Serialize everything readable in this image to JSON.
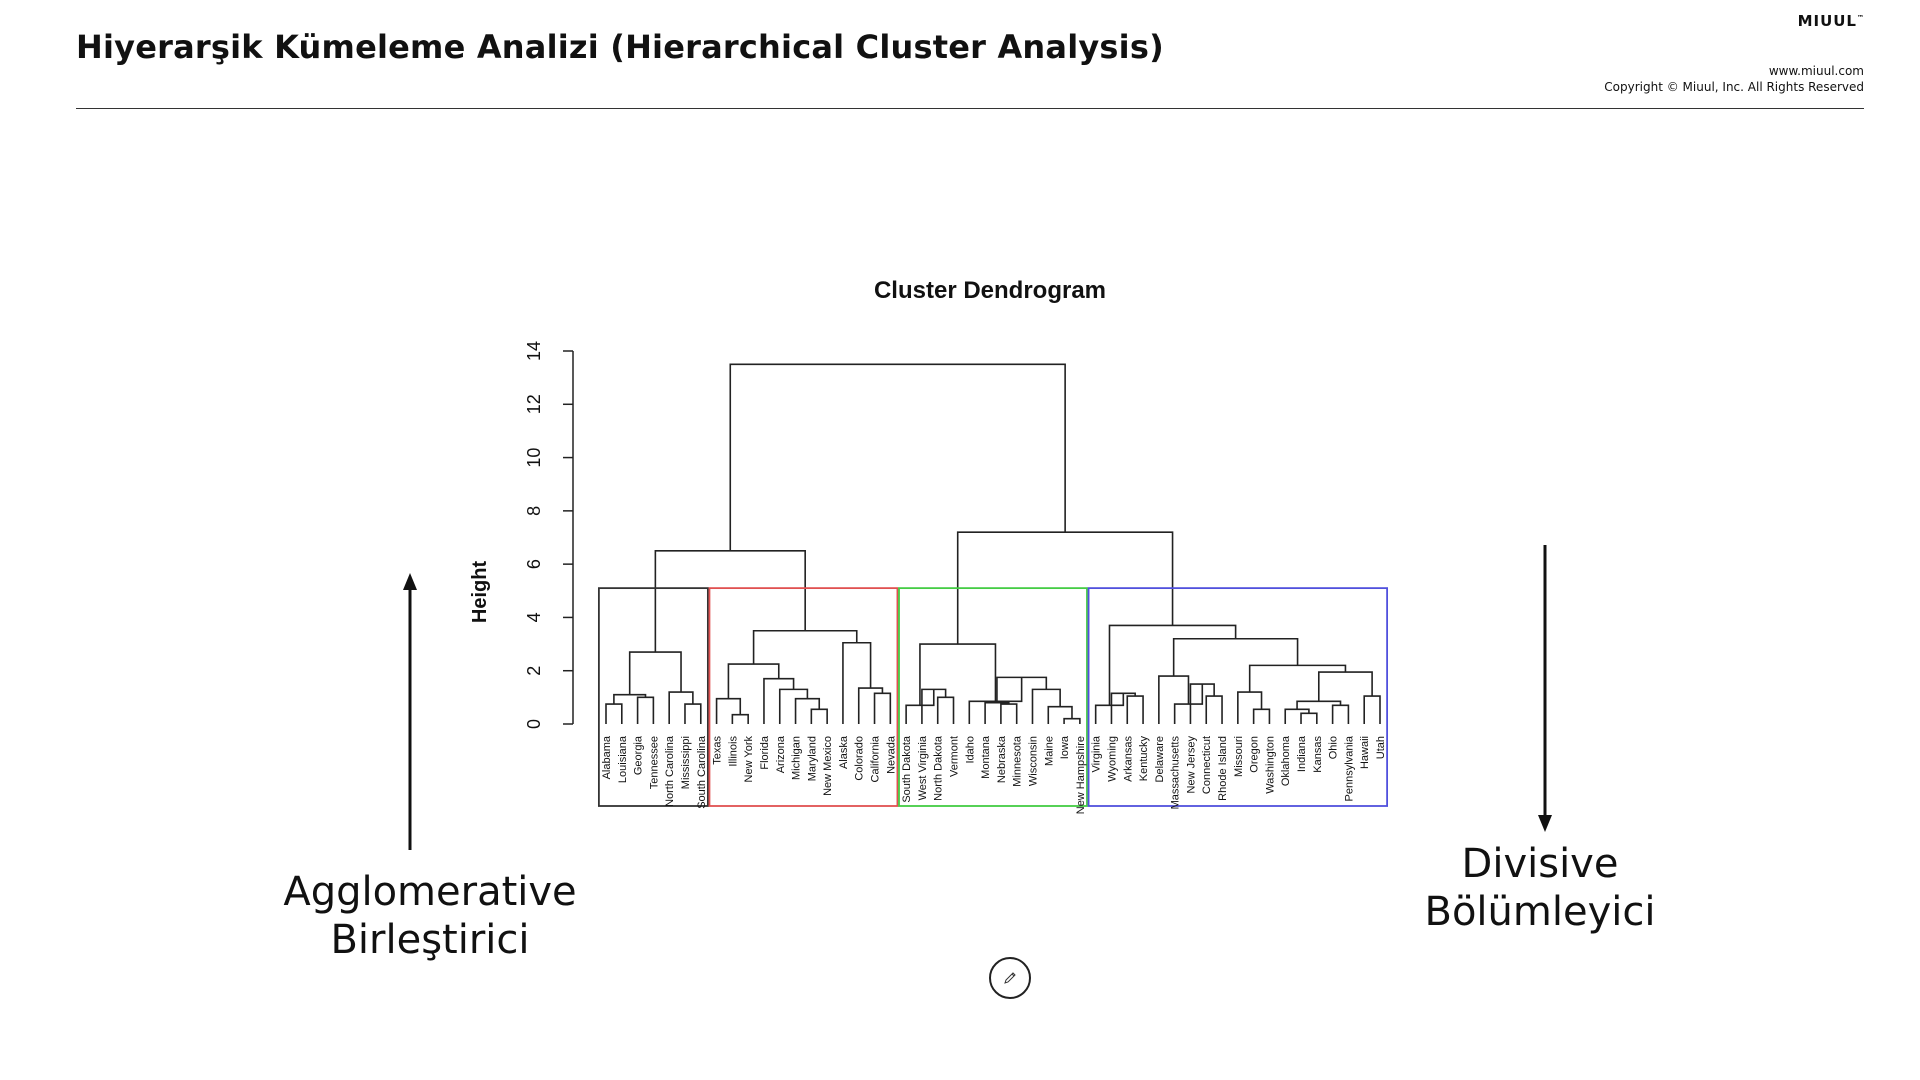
{
  "header": {
    "title": "Hiyerarşik Kümeleme Analizi (Hierarchical Cluster Analysis)",
    "brand": "MIUUL",
    "brand_mark": "™",
    "website": "www.miuul.com",
    "copyright": "Copyright © Miuul, Inc. All Rights Reserved"
  },
  "chart_data": {
    "type": "dendrogram",
    "title": "Cluster Dendrogram",
    "ylabel": "Height",
    "ylim": [
      0,
      14
    ],
    "yticks": [
      0,
      2,
      4,
      6,
      8,
      10,
      12,
      14
    ],
    "leaves": [
      "Alabama",
      "Louisiana",
      "Georgia",
      "Tennessee",
      "North Carolina",
      "Mississippi",
      "South Carolina",
      "Texas",
      "Illinois",
      "New York",
      "Florida",
      "Arizona",
      "Michigan",
      "Maryland",
      "New Mexico",
      "Alaska",
      "Colorado",
      "California",
      "Nevada",
      "South Dakota",
      "West Virginia",
      "North Dakota",
      "Vermont",
      "Idaho",
      "Montana",
      "Nebraska",
      "Minnesota",
      "Wisconsin",
      "Maine",
      "Iowa",
      "New Hampshire",
      "Virginia",
      "Wyoming",
      "Arkansas",
      "Kentucky",
      "Delaware",
      "Massachusetts",
      "New Jersey",
      "Connecticut",
      "Rhode Island",
      "Missouri",
      "Oregon",
      "Washington",
      "Oklahoma",
      "Indiana",
      "Kansas",
      "Ohio",
      "Pennsylvania",
      "Hawaii",
      "Utah"
    ],
    "merges": [
      {
        "a": "L0",
        "b": "L1",
        "h": 0.75
      },
      {
        "a": "L2",
        "b": "L3",
        "h": 1.0
      },
      {
        "a": "M0",
        "b": "M1",
        "h": 1.1
      },
      {
        "a": "L5",
        "b": "L6",
        "h": 0.75
      },
      {
        "a": "L4",
        "b": "M3",
        "h": 1.2
      },
      {
        "a": "M2",
        "b": "M4",
        "h": 2.7
      },
      {
        "a": "L8",
        "b": "L9",
        "h": 0.35
      },
      {
        "a": "L7",
        "b": "M6",
        "h": 0.95
      },
      {
        "a": "L13",
        "b": "L14",
        "h": 0.55
      },
      {
        "a": "L12",
        "b": "M8",
        "h": 0.95
      },
      {
        "a": "L11",
        "b": "M9",
        "h": 1.3
      },
      {
        "a": "L10",
        "b": "M10",
        "h": 1.7
      },
      {
        "a": "M7",
        "b": "M11",
        "h": 2.25
      },
      {
        "a": "L17",
        "b": "L18",
        "h": 1.15
      },
      {
        "a": "L16",
        "b": "M13",
        "h": 1.35
      },
      {
        "a": "L15",
        "b": "M14",
        "h": 3.05
      },
      {
        "a": "M12",
        "b": "M15",
        "h": 3.5
      },
      {
        "a": "M5",
        "b": "M16",
        "h": 6.5
      },
      {
        "a": "L21",
        "b": "L22",
        "h": 1.0
      },
      {
        "a": "L20",
        "b": "M18",
        "h": 1.3
      },
      {
        "a": "L19",
        "b": "M19",
        "h": 0.7
      },
      {
        "a": "L25",
        "b": "L26",
        "h": 0.75
      },
      {
        "a": "L24",
        "b": "M21",
        "h": 0.8
      },
      {
        "a": "L29",
        "b": "L30",
        "h": 0.2
      },
      {
        "a": "L28",
        "b": "M23",
        "h": 0.65
      },
      {
        "a": "L27",
        "b": "M24",
        "h": 1.3
      },
      {
        "a": "M22",
        "b": "M25",
        "h": 1.75
      },
      {
        "a": "L23",
        "b": "M26",
        "h": 0.85
      },
      {
        "a": "M20",
        "b": "M27",
        "h": 3.0
      },
      {
        "a": "L33",
        "b": "L34",
        "h": 1.05
      },
      {
        "a": "L32",
        "b": "M29",
        "h": 1.15
      },
      {
        "a": "L31",
        "b": "M30",
        "h": 0.7
      },
      {
        "a": "L38",
        "b": "L39",
        "h": 1.05
      },
      {
        "a": "L37",
        "b": "M32",
        "h": 1.5
      },
      {
        "a": "L36",
        "b": "M33",
        "h": 0.75
      },
      {
        "a": "L35",
        "b": "M34",
        "h": 1.8
      },
      {
        "a": "L41",
        "b": "L42",
        "h": 0.55
      },
      {
        "a": "L40",
        "b": "M36",
        "h": 1.2
      },
      {
        "a": "L44",
        "b": "L45",
        "h": 0.4
      },
      {
        "a": "L43",
        "b": "M38",
        "h": 0.55
      },
      {
        "a": "L46",
        "b": "L47",
        "h": 0.7
      },
      {
        "a": "M39",
        "b": "M40",
        "h": 0.85
      },
      {
        "a": "L48",
        "b": "L49",
        "h": 1.05
      },
      {
        "a": "M41",
        "b": "M42",
        "h": 1.95
      },
      {
        "a": "M37",
        "b": "M43",
        "h": 2.2
      },
      {
        "a": "M35",
        "b": "M44",
        "h": 3.2
      },
      {
        "a": "M31",
        "b": "M45",
        "h": 3.7
      },
      {
        "a": "M28",
        "b": "M46",
        "h": 7.2
      },
      {
        "a": "M17",
        "b": "M47",
        "h": 13.5
      }
    ],
    "cut_height": 5.1,
    "clusters": [
      {
        "from": 0,
        "to": 6,
        "color": "#333333"
      },
      {
        "from": 7,
        "to": 18,
        "color": "#e05050"
      },
      {
        "from": 19,
        "to": 30,
        "color": "#44cc44"
      },
      {
        "from": 31,
        "to": 49,
        "color": "#5050dd"
      }
    ]
  },
  "annotations": {
    "agglomerative_line1": "Agglomerative",
    "agglomerative_line2": "Birleştirici",
    "divisive_line1": "Divisive",
    "divisive_line2": "Bölümleyici"
  },
  "icons": {
    "pen": "pen-icon"
  }
}
